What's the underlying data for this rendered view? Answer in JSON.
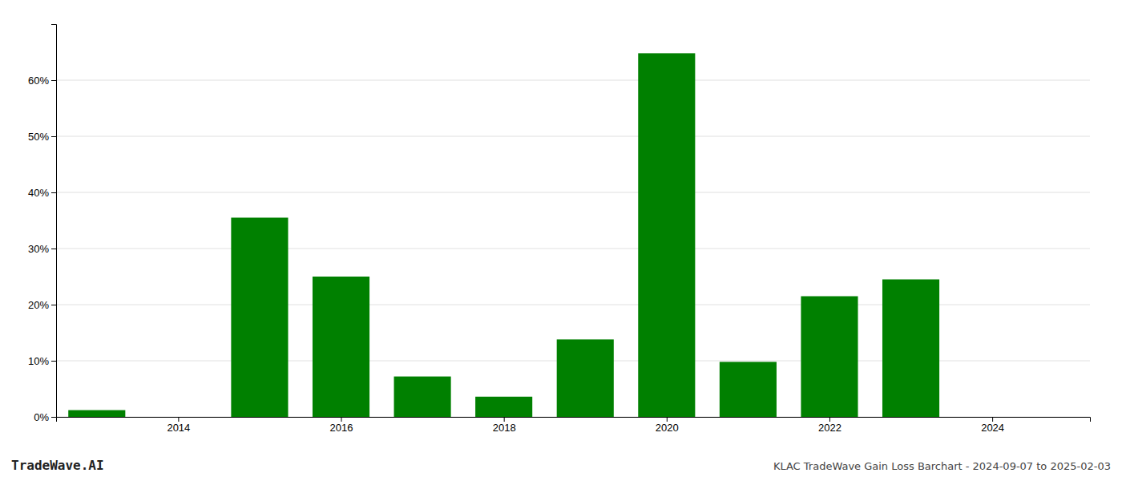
{
  "chart_data": {
    "type": "bar",
    "x": [
      2013,
      2015,
      2016,
      2017,
      2018,
      2019,
      2020,
      2021,
      2022,
      2023
    ],
    "values": [
      0.012,
      0.355,
      0.25,
      0.072,
      0.036,
      0.138,
      0.648,
      0.098,
      0.215,
      0.245
    ],
    "color": "#008000",
    "xlim": [
      2012.5,
      2025.2
    ],
    "xticks": [
      2014,
      2016,
      2018,
      2020,
      2022,
      2024
    ],
    "ylim": [
      0,
      0.7
    ],
    "yticks": [
      {
        "value": 0.0,
        "label": "0%"
      },
      {
        "value": 0.1,
        "label": "10%"
      },
      {
        "value": 0.2,
        "label": "20%"
      },
      {
        "value": 0.3,
        "label": "30%"
      },
      {
        "value": 0.4,
        "label": "40%"
      },
      {
        "value": 0.5,
        "label": "50%"
      },
      {
        "value": 0.6,
        "label": "60%"
      }
    ],
    "grid": true,
    "annotations": [
      "TradeWave.AI",
      "KLAC TradeWave Gain Loss Barchart - 2024-09-07 to 2025-02-03"
    ]
  }
}
